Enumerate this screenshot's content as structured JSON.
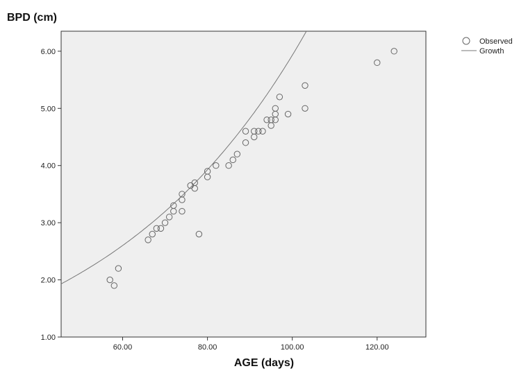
{
  "chart_data": {
    "type": "scatter",
    "title": "",
    "ylabel": "BPD (cm)",
    "xlabel": "AGE (days)",
    "xlim": [
      45.5,
      131.5
    ],
    "ylim": [
      1.0,
      6.35
    ],
    "xticks": [
      60,
      80,
      100,
      120
    ],
    "xtick_labels": [
      "60.00",
      "80.00",
      "100.00",
      "120.00"
    ],
    "yticks": [
      1,
      2,
      3,
      4,
      5,
      6
    ],
    "ytick_labels": [
      "1.00",
      "2.00",
      "3.00",
      "4.00",
      "5.00",
      "6.00"
    ],
    "grid": false,
    "legend_position": "top-right, outside plot",
    "plot_background": "#efefef",
    "series": [
      {
        "name": "Observed",
        "kind": "points",
        "marker": "open-circle",
        "color": "#666666",
        "points": [
          [
            57,
            2.0
          ],
          [
            58,
            1.9
          ],
          [
            59,
            2.2
          ],
          [
            66,
            2.7
          ],
          [
            67,
            2.8
          ],
          [
            68,
            2.9
          ],
          [
            69,
            2.9
          ],
          [
            70,
            3.0
          ],
          [
            71,
            3.1
          ],
          [
            72,
            3.2
          ],
          [
            72,
            3.3
          ],
          [
            74,
            3.2
          ],
          [
            74,
            3.4
          ],
          [
            74,
            3.5
          ],
          [
            76,
            3.65
          ],
          [
            77,
            3.6
          ],
          [
            77,
            3.7
          ],
          [
            78,
            2.8
          ],
          [
            80,
            3.8
          ],
          [
            80,
            3.9
          ],
          [
            82,
            4.0
          ],
          [
            85,
            4.0
          ],
          [
            86,
            4.1
          ],
          [
            87,
            4.2
          ],
          [
            89,
            4.4
          ],
          [
            89,
            4.6
          ],
          [
            91,
            4.5
          ],
          [
            91,
            4.6
          ],
          [
            92,
            4.6
          ],
          [
            93,
            4.6
          ],
          [
            94,
            4.8
          ],
          [
            95,
            4.7
          ],
          [
            95,
            4.8
          ],
          [
            96,
            4.8
          ],
          [
            96,
            4.9
          ],
          [
            96,
            5.0
          ],
          [
            97,
            5.2
          ],
          [
            99,
            4.9
          ],
          [
            103,
            5.0
          ],
          [
            103,
            5.4
          ],
          [
            120,
            5.8
          ],
          [
            124,
            6.0
          ]
        ]
      },
      {
        "name": "Growth",
        "kind": "fitted-curve",
        "model": "growth",
        "equation": "BPD = exp(-0.28 + 0.0206 * AGE)",
        "color": "#777777"
      }
    ]
  }
}
